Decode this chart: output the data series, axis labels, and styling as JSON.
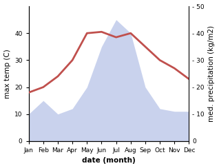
{
  "months": [
    "Jan",
    "Feb",
    "Mar",
    "Apr",
    "May",
    "Jun",
    "Jul",
    "Aug",
    "Sep",
    "Oct",
    "Nov",
    "Dec"
  ],
  "temperature": [
    18,
    20,
    24,
    30,
    40,
    40.5,
    38.5,
    40,
    35,
    30,
    27,
    23
  ],
  "precipitation": [
    10,
    15,
    10,
    12,
    20,
    35,
    45,
    40,
    20,
    12,
    11,
    11
  ],
  "temp_color": "#c0504d",
  "precip_fill_color": "#b8c4e8",
  "precip_alpha": 0.75,
  "ylabel_left": "max temp (C)",
  "ylabel_right": "med. precipitation (kg/m2)",
  "xlabel": "date (month)",
  "ylim_left": [
    0,
    50
  ],
  "ylim_right": [
    0,
    50
  ],
  "yticks_left": [
    0,
    10,
    20,
    30,
    40
  ],
  "yticks_right": [
    0,
    10,
    20,
    30,
    40,
    50
  ],
  "temp_linewidth": 2.0,
  "label_fontsize": 7.5,
  "tick_fontsize": 6.5
}
